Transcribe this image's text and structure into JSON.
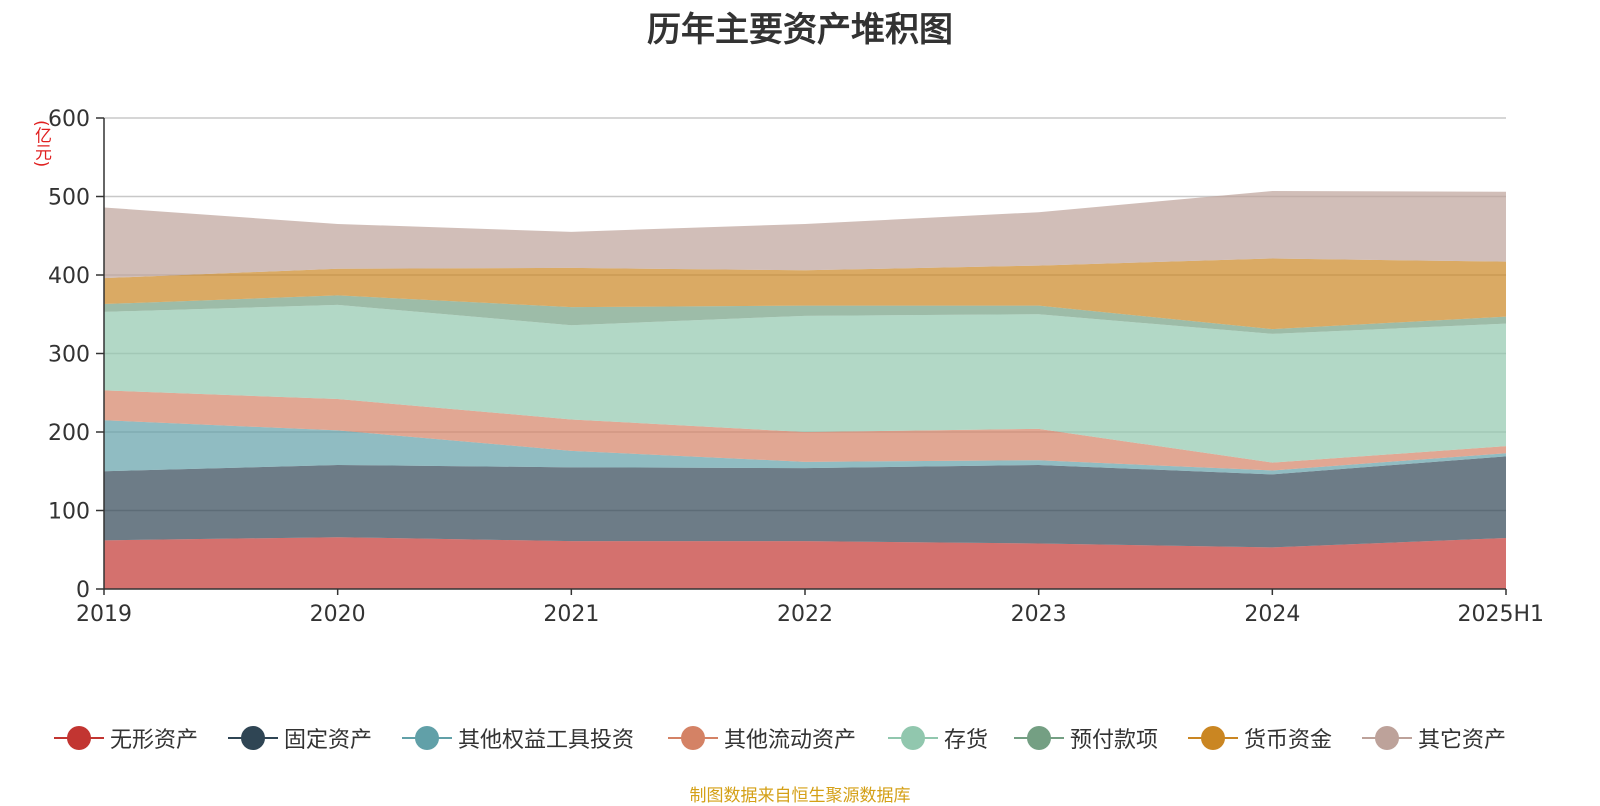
{
  "chart_data": {
    "type": "area",
    "stacked": true,
    "title": "历年主要资产堆积图",
    "y_unit": "(亿元)",
    "x": [
      "2019",
      "2020",
      "2021",
      "2022",
      "2023",
      "2024",
      "2025H1"
    ],
    "ylim": [
      0,
      600
    ],
    "y_ticks": [
      "0",
      "100",
      "200",
      "300",
      "400",
      "500",
      "600"
    ],
    "grid": true,
    "legend_position": "bottom",
    "series": [
      {
        "name": "无形资产",
        "color": "#c23531",
        "values": [
          62,
          66,
          61,
          61,
          58,
          53,
          65
        ]
      },
      {
        "name": "固定资产",
        "color": "#2f4554",
        "values": [
          88,
          92,
          94,
          93,
          100,
          93,
          104
        ]
      },
      {
        "name": "其他权益工具投资",
        "color": "#61a0a8",
        "values": [
          65,
          44,
          21,
          8,
          6,
          5,
          4
        ]
      },
      {
        "name": "其他流动资产",
        "color": "#d48265",
        "values": [
          38,
          40,
          40,
          38,
          40,
          10,
          9
        ]
      },
      {
        "name": "存货",
        "color": "#91c7ae",
        "values": [
          100,
          120,
          120,
          148,
          146,
          164,
          156
        ]
      },
      {
        "name": "预付款项",
        "color": "#749f83",
        "values": [
          10,
          12,
          23,
          13,
          11,
          6,
          9
        ]
      },
      {
        "name": "货币资金",
        "color": "#ca8622",
        "values": [
          33,
          34,
          50,
          45,
          51,
          90,
          70
        ]
      },
      {
        "name": "其它资产",
        "color": "#bda29a",
        "values": [
          90,
          57,
          46,
          59,
          68,
          86,
          89
        ]
      }
    ]
  },
  "source_note": "制图数据来自恒生聚源数据库"
}
